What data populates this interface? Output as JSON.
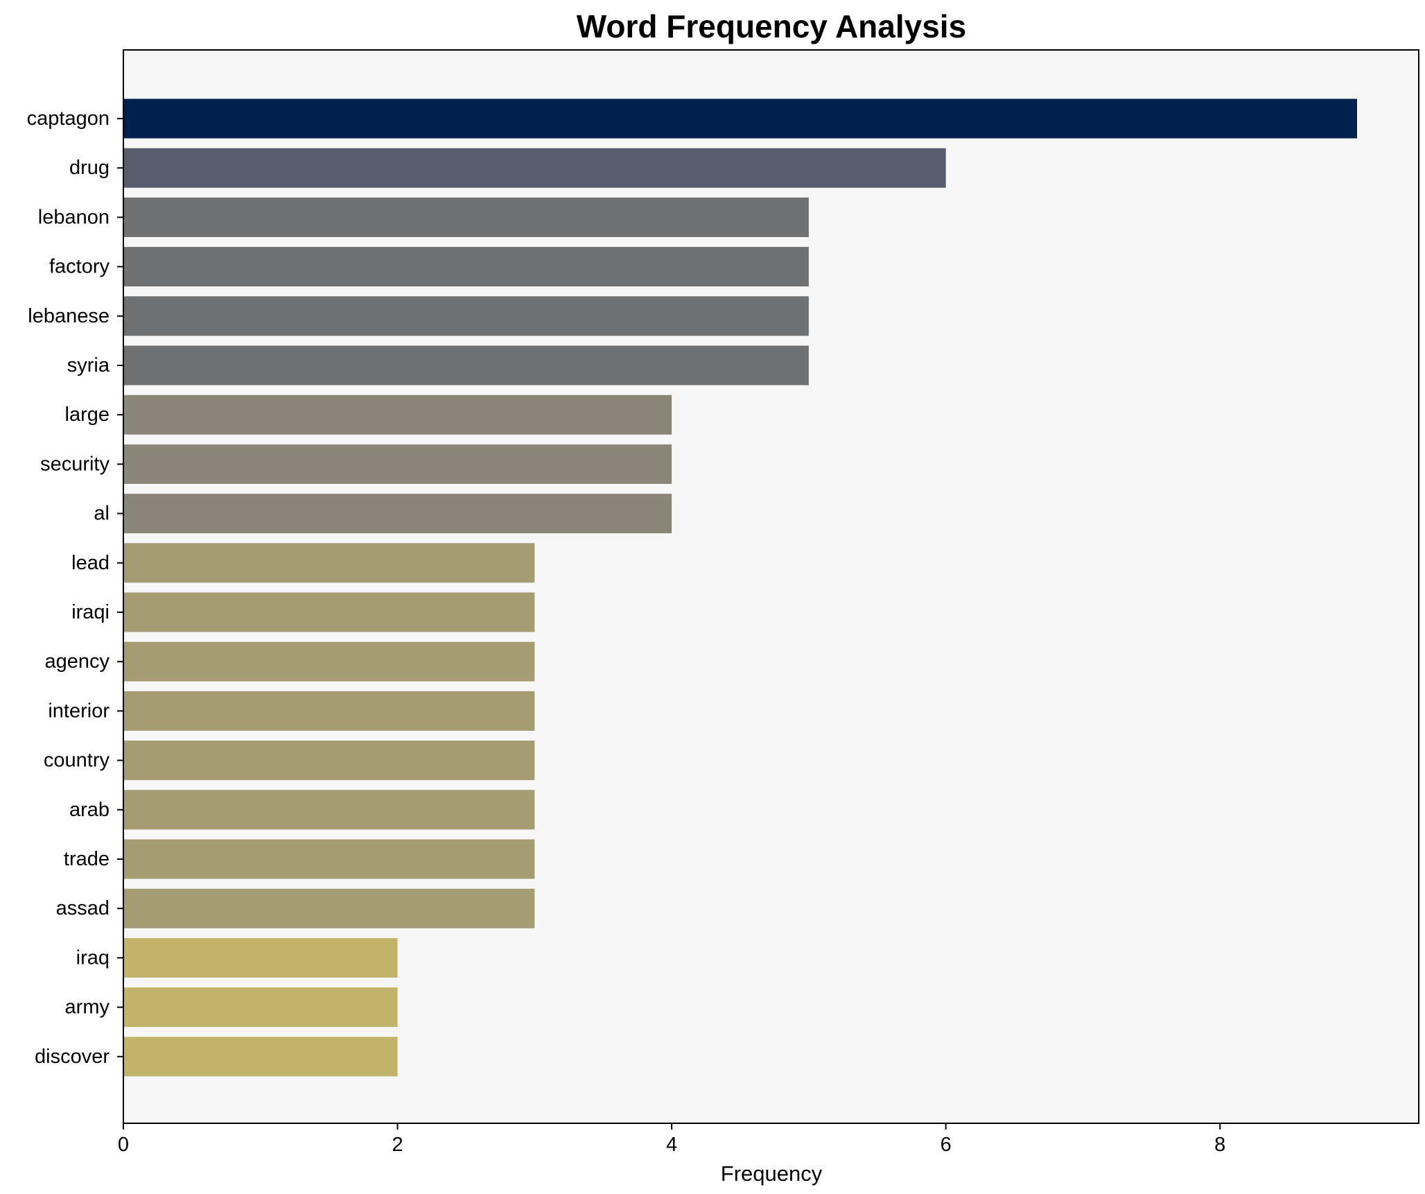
{
  "chart_data": {
    "type": "bar",
    "orientation": "horizontal",
    "title": "Word Frequency Analysis",
    "xlabel": "Frequency",
    "ylabel": "",
    "xlim": [
      0,
      9.45
    ],
    "xticks": [
      0,
      2,
      4,
      6,
      8
    ],
    "grid": false,
    "legend": "none",
    "categories": [
      "captagon",
      "drug",
      "lebanon",
      "factory",
      "lebanese",
      "syria",
      "large",
      "security",
      "al",
      "lead",
      "iraqi",
      "agency",
      "interior",
      "country",
      "arab",
      "trade",
      "assad",
      "iraq",
      "army",
      "discover"
    ],
    "values": [
      9,
      6,
      5,
      5,
      5,
      5,
      4,
      4,
      4,
      3,
      3,
      3,
      3,
      3,
      3,
      3,
      3,
      2,
      2,
      2
    ],
    "colors": {
      "9": "#00224e",
      "6": "#575d6d",
      "5": "#707173",
      "4": "#8a8678",
      "3": "#a59c74",
      "2": "#c3b369"
    },
    "plot_background": "#f7f7f7"
  }
}
